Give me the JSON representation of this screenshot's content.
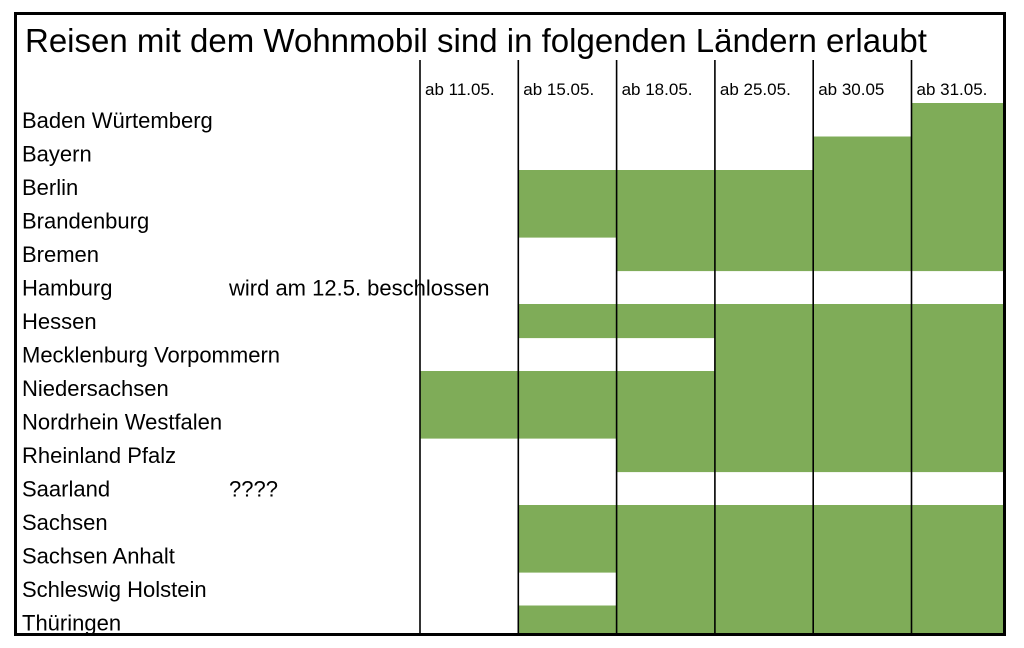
{
  "chart_data": {
    "type": "table",
    "title": "Reisen mit dem Wohnmobil sind in folgenden Ländern erlaubt",
    "columns": [
      "ab 11.05.",
      "ab 15.05.",
      "ab 18.05.",
      "ab 25.05.",
      "ab 30.05",
      "ab 31.05."
    ],
    "rows": [
      {
        "state": "Baden Würtemberg",
        "note": "",
        "allowed": [
          0,
          0,
          0,
          0,
          0,
          1
        ]
      },
      {
        "state": "Bayern",
        "note": "",
        "allowed": [
          0,
          0,
          0,
          0,
          1,
          1
        ]
      },
      {
        "state": "Berlin",
        "note": "",
        "allowed": [
          0,
          1,
          1,
          1,
          1,
          1
        ]
      },
      {
        "state": "Brandenburg",
        "note": "",
        "allowed": [
          0,
          1,
          1,
          1,
          1,
          1
        ]
      },
      {
        "state": "Bremen",
        "note": "",
        "allowed": [
          0,
          0,
          1,
          1,
          1,
          1
        ]
      },
      {
        "state": "Hamburg",
        "note": "wird am 12.5. beschlossen",
        "allowed": [
          0,
          0,
          0,
          0,
          0,
          0
        ]
      },
      {
        "state": "Hessen",
        "note": "",
        "allowed": [
          0,
          1,
          1,
          1,
          1,
          1
        ]
      },
      {
        "state": "Mecklenburg Vorpommern",
        "note": "",
        "allowed": [
          0,
          0,
          0,
          1,
          1,
          1
        ]
      },
      {
        "state": "Niedersachsen",
        "note": "",
        "allowed": [
          1,
          1,
          1,
          1,
          1,
          1
        ]
      },
      {
        "state": "Nordrhein Westfalen",
        "note": "",
        "allowed": [
          1,
          1,
          1,
          1,
          1,
          1
        ]
      },
      {
        "state": "Rheinland Pfalz",
        "note": "",
        "allowed": [
          0,
          0,
          1,
          1,
          1,
          1
        ]
      },
      {
        "state": "Saarland",
        "note": "????",
        "allowed": [
          0,
          0,
          0,
          0,
          0,
          0
        ]
      },
      {
        "state": "Sachsen",
        "note": "",
        "allowed": [
          0,
          1,
          1,
          1,
          1,
          1
        ]
      },
      {
        "state": "Sachsen Anhalt",
        "note": "",
        "allowed": [
          0,
          1,
          1,
          1,
          1,
          1
        ]
      },
      {
        "state": "Schleswig Holstein",
        "note": "",
        "allowed": [
          0,
          0,
          1,
          1,
          1,
          1
        ]
      },
      {
        "state": "Thüringen",
        "note": "",
        "allowed": [
          0,
          1,
          1,
          1,
          1,
          1
        ]
      }
    ],
    "colors": {
      "allowed": "#7fac58",
      "border": "#000000",
      "background": "#ffffff"
    }
  }
}
